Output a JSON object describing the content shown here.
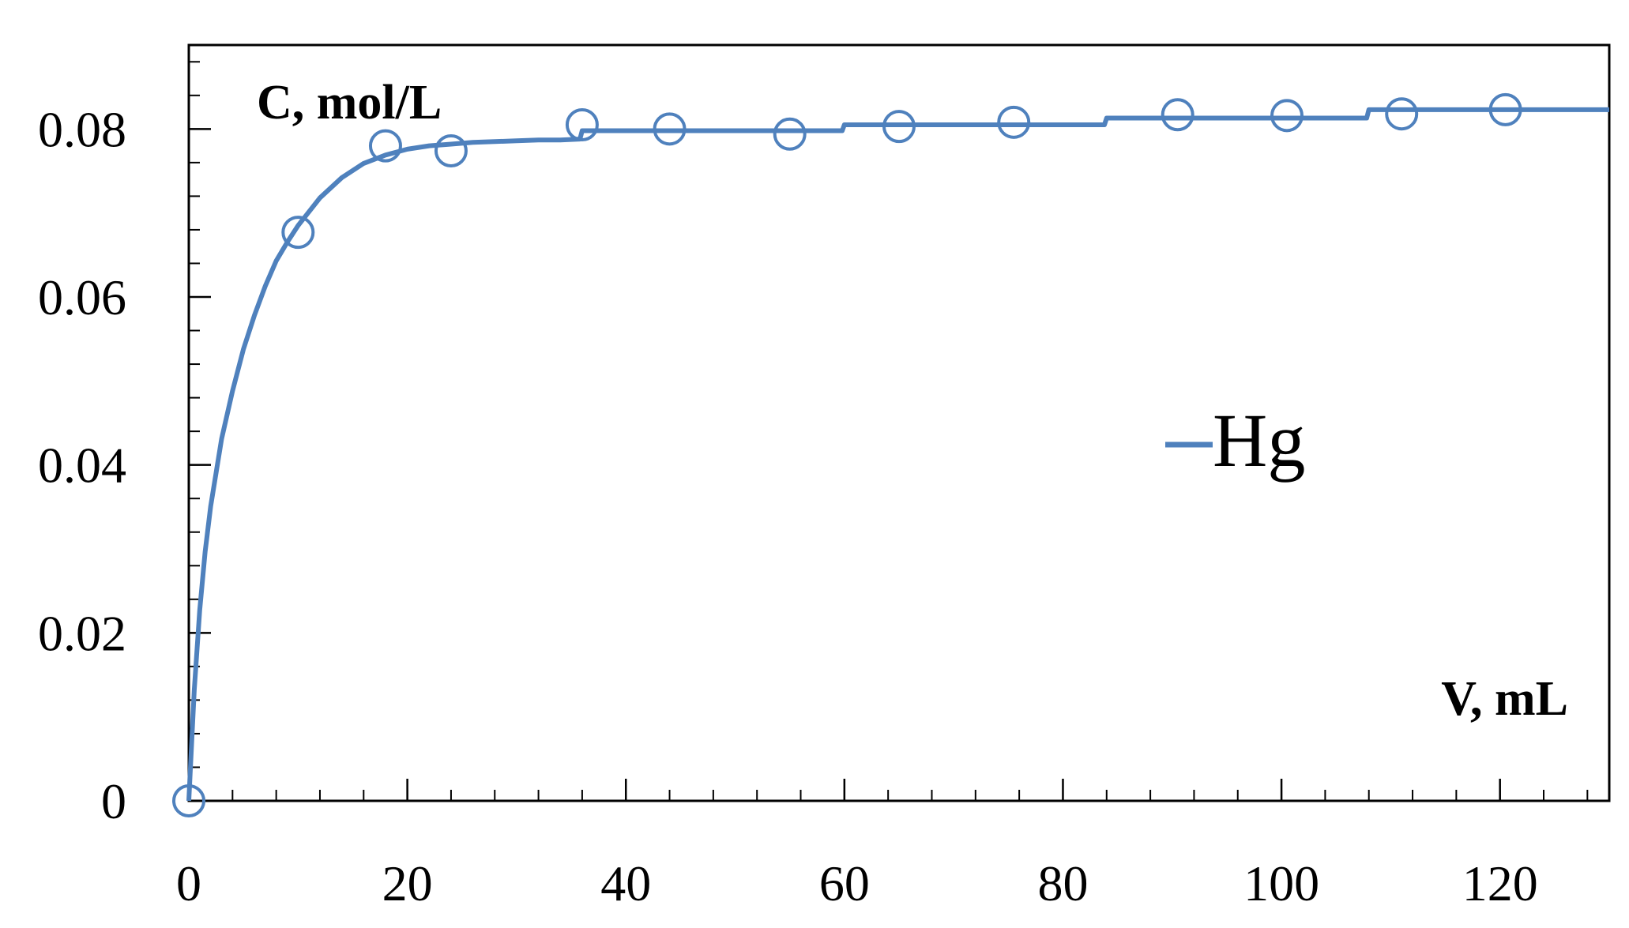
{
  "chart_data": {
    "type": "line",
    "title": "",
    "xlabel": "V, mL",
    "ylabel": "C, mol/L",
    "xlim": [
      0,
      130
    ],
    "ylim": [
      0,
      0.09
    ],
    "x_ticks": [
      0,
      20,
      40,
      60,
      80,
      100,
      120
    ],
    "x_tick_labels": [
      "0",
      "20",
      "40",
      "60",
      "80",
      "100",
      "120"
    ],
    "y_ticks": [
      0,
      0.02,
      0.04,
      0.06,
      0.08
    ],
    "y_tick_labels": [
      "0",
      "0.02",
      "0.04",
      "0.06",
      "0.08"
    ],
    "x_minor_step": 4,
    "y_minor_step": 0.004,
    "grid": false,
    "legend": {
      "position": "center-right",
      "entries": [
        "Hg"
      ]
    },
    "series": [
      {
        "name": "Hg",
        "kind": "line",
        "color": "#4f81bd",
        "x": [
          0,
          0.5,
          1,
          1.5,
          2,
          3,
          4,
          5,
          6,
          7,
          8,
          9,
          10,
          12,
          14,
          16,
          18,
          20,
          22,
          24,
          26,
          28,
          30,
          32,
          34,
          35.8,
          36,
          40,
          44,
          48,
          52,
          56,
          59.8,
          60,
          64,
          68,
          72,
          76,
          80,
          83.8,
          84,
          88,
          92,
          96,
          100,
          104,
          107.8,
          108,
          112,
          116,
          120,
          124,
          128,
          130
        ],
        "y": [
          0,
          0.0132,
          0.0227,
          0.0297,
          0.0351,
          0.0431,
          0.0488,
          0.0538,
          0.0578,
          0.0613,
          0.0643,
          0.0665,
          0.0685,
          0.0718,
          0.0742,
          0.0759,
          0.0769,
          0.0776,
          0.078,
          0.0782,
          0.0784,
          0.0785,
          0.0786,
          0.0787,
          0.0787,
          0.0788,
          0.0798,
          0.0798,
          0.0798,
          0.0798,
          0.0798,
          0.0798,
          0.0798,
          0.0805,
          0.0805,
          0.0805,
          0.0805,
          0.0805,
          0.0805,
          0.0805,
          0.0813,
          0.0813,
          0.0813,
          0.0813,
          0.0813,
          0.0813,
          0.0813,
          0.0823,
          0.0823,
          0.0823,
          0.0823,
          0.0823,
          0.0823,
          0.0823
        ]
      },
      {
        "name": "",
        "kind": "scatter",
        "marker": "circle-open",
        "color": "#4f81bd",
        "x": [
          0,
          10,
          18,
          24,
          36,
          44,
          55,
          65,
          75.5,
          90.5,
          100.5,
          111,
          120.5
        ],
        "y": [
          0,
          0.0677,
          0.078,
          0.0774,
          0.0805,
          0.08,
          0.0794,
          0.0803,
          0.0808,
          0.0817,
          0.0816,
          0.0818,
          0.0823
        ]
      }
    ]
  }
}
